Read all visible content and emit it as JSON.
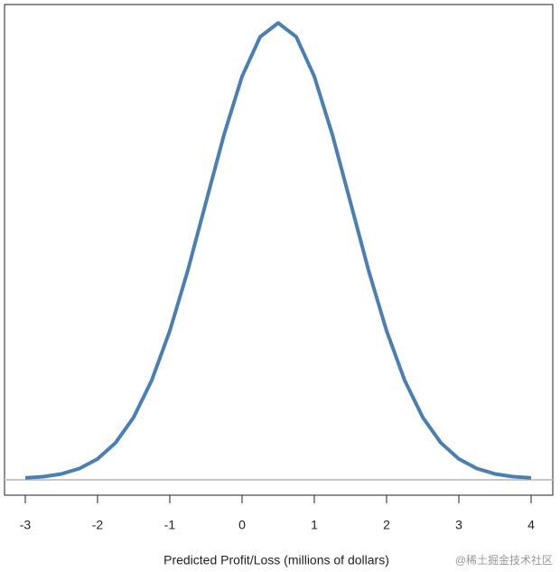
{
  "chart_data": {
    "type": "line",
    "xlabel": "Predicted Profit/Loss (millions of dollars)",
    "watermark": "@稀土掘金技术社区",
    "x": [
      -3,
      -2.75,
      -2.5,
      -2.25,
      -2,
      -1.75,
      -1.5,
      -1.25,
      -1,
      -0.75,
      -0.5,
      -0.25,
      0,
      0.25,
      0.5,
      0.75,
      1,
      1.25,
      1.5,
      1.75,
      2,
      2.25,
      2.5,
      2.75,
      3,
      3.25,
      3.5,
      3.75,
      4
    ],
    "series": [
      {
        "color": "#4a7fb4",
        "values": [
          0.0009,
          0.002,
          0.0044,
          0.0091,
          0.0175,
          0.0317,
          0.054,
          0.0863,
          0.1295,
          0.1826,
          0.242,
          0.3011,
          0.3521,
          0.3867,
          0.3989,
          0.3867,
          0.3521,
          0.3011,
          0.242,
          0.1826,
          0.1295,
          0.0863,
          0.054,
          0.0317,
          0.0175,
          0.0091,
          0.0044,
          0.002,
          0.0009
        ]
      }
    ],
    "xlim": [
      -3.2875,
      4.3
    ],
    "ylim": [
      -0.0142,
      0.415
    ],
    "xticks": [
      -3,
      -2,
      -1,
      0,
      1,
      2,
      3,
      4
    ]
  }
}
